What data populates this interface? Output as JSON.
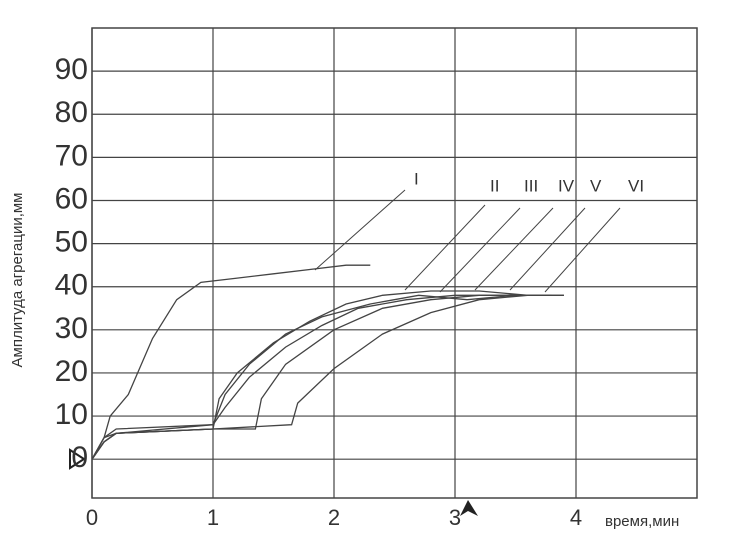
{
  "chart_data": {
    "type": "line",
    "x_label": "время,мин",
    "y_label": "Амплитуда агрегации,мм",
    "xlim": [
      0,
      5
    ],
    "xticks": [
      0,
      1,
      2,
      3,
      4
    ],
    "ylim": [
      -9,
      100
    ],
    "yticks": [
      0,
      10,
      20,
      30,
      40,
      50,
      60,
      70,
      80,
      90
    ],
    "grid": true,
    "series": [
      {
        "name": "I",
        "color": "#444444",
        "x": [
          0,
          0.1,
          0.15,
          0.3,
          0.5,
          0.7,
          0.9,
          1.2,
          1.5,
          1.8,
          2.1,
          2.3
        ],
        "values": [
          0,
          5,
          10,
          15,
          28,
          37,
          41,
          42,
          43,
          44,
          45,
          45
        ]
      },
      {
        "name": "II",
        "color": "#444444",
        "x": [
          0,
          0.1,
          0.2,
          1.0,
          1.05,
          1.2,
          1.5,
          1.8,
          2.1,
          2.4,
          2.8,
          3.2,
          3.6
        ],
        "values": [
          0,
          5,
          6,
          7,
          14,
          20,
          27,
          32,
          36,
          38,
          39,
          39,
          38
        ]
      },
      {
        "name": "III",
        "color": "#444444",
        "x": [
          0,
          0.1,
          0.2,
          1.0,
          1.1,
          1.3,
          1.6,
          1.9,
          2.2,
          2.6,
          3.0,
          3.4,
          3.8
        ],
        "values": [
          0,
          4,
          6,
          8,
          12,
          19,
          26,
          31,
          35,
          37,
          38,
          38,
          38
        ]
      },
      {
        "name": "IV",
        "color": "#444444",
        "x": [
          0,
          0.1,
          0.2,
          1.0,
          1.1,
          1.3,
          1.6,
          1.9,
          2.3,
          2.7,
          3.1,
          3.5
        ],
        "values": [
          0,
          5,
          7,
          8,
          15,
          22,
          29,
          33,
          36,
          38,
          37,
          38
        ]
      },
      {
        "name": "V",
        "color": "#444444",
        "x": [
          0,
          0.1,
          0.2,
          1.0,
          1.35,
          1.4,
          1.6,
          2.0,
          2.4,
          2.8,
          3.2,
          3.6,
          3.9
        ],
        "values": [
          0,
          4,
          6,
          7,
          7,
          14,
          22,
          30,
          35,
          37,
          38,
          38,
          38
        ]
      },
      {
        "name": "VI",
        "color": "#444444",
        "x": [
          0,
          0.1,
          0.2,
          1.0,
          1.65,
          1.7,
          2.0,
          2.4,
          2.8,
          3.2,
          3.6,
          3.9
        ],
        "values": [
          0,
          4,
          6,
          7,
          8,
          13,
          21,
          29,
          34,
          37,
          38,
          38
        ]
      }
    ]
  }
}
